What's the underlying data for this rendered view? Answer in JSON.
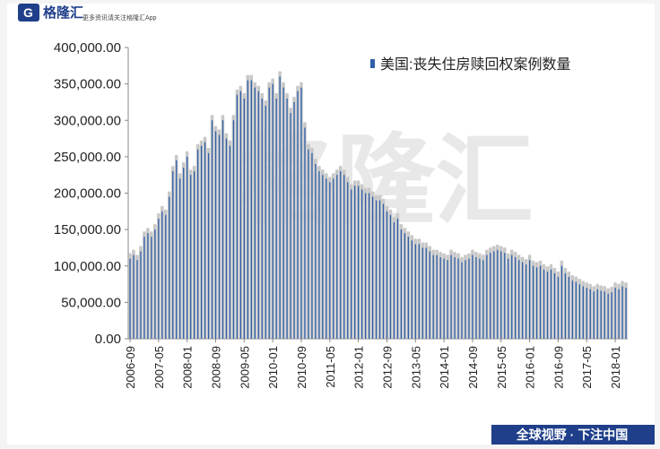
{
  "header": {
    "brand": "格隆汇",
    "slogan": "更多资讯请关注格隆汇App"
  },
  "footer": "全球视野 · 下注中国",
  "chart_data": {
    "type": "bar",
    "series": [
      {
        "name": "美国:丧失住房赎回权案例数量",
        "color": "#2e5fa8",
        "values": [
          110000,
          115000,
          108000,
          120000,
          140000,
          145000,
          140000,
          150000,
          165000,
          175000,
          170000,
          195000,
          230000,
          245000,
          220000,
          235000,
          250000,
          225000,
          230000,
          260000,
          265000,
          270000,
          255000,
          300000,
          285000,
          280000,
          300000,
          275000,
          265000,
          300000,
          335000,
          340000,
          330000,
          355000,
          355000,
          345000,
          340000,
          330000,
          320000,
          345000,
          350000,
          330000,
          360000,
          345000,
          330000,
          310000,
          325000,
          340000,
          345000,
          290000,
          260000,
          255000,
          240000,
          230000,
          225000,
          220000,
          215000,
          220000,
          225000,
          230000,
          225000,
          215000,
          205000,
          210000,
          210000,
          205000,
          200000,
          200000,
          195000,
          190000,
          190000,
          185000,
          175000,
          170000,
          160000,
          165000,
          150000,
          145000,
          140000,
          135000,
          130000,
          130000,
          125000,
          125000,
          120000,
          115000,
          115000,
          112000,
          110000,
          108000,
          115000,
          112000,
          110000,
          105000,
          108000,
          110000,
          115000,
          112000,
          110000,
          108000,
          115000,
          118000,
          120000,
          122000,
          120000,
          118000,
          110000,
          115000,
          112000,
          108000,
          105000,
          102000,
          108000,
          100000,
          98000,
          100000,
          95000,
          92000,
          95000,
          90000,
          85000,
          100000,
          90000,
          85000,
          80000,
          78000,
          75000,
          72000,
          70000,
          68000,
          65000,
          68000,
          66000,
          65000,
          62000,
          64000,
          70000,
          68000,
          72000,
          70000
        ]
      }
    ],
    "categories": [
      "2006-09",
      null,
      null,
      null,
      null,
      null,
      null,
      null,
      "2007-05",
      null,
      null,
      null,
      null,
      null,
      null,
      null,
      "2008-01",
      null,
      null,
      null,
      null,
      null,
      null,
      null,
      "2008-09",
      null,
      null,
      null,
      null,
      null,
      null,
      null,
      "2009-05",
      null,
      null,
      null,
      null,
      null,
      null,
      null,
      "2010-01",
      null,
      null,
      null,
      null,
      null,
      null,
      null,
      "2010-09",
      null,
      null,
      null,
      null,
      null,
      null,
      null,
      "2011-05",
      null,
      null,
      null,
      null,
      null,
      null,
      null,
      "2012-01",
      null,
      null,
      null,
      null,
      null,
      null,
      null,
      "2012-09",
      null,
      null,
      null,
      null,
      null,
      null,
      null,
      "2013-05",
      null,
      null,
      null,
      null,
      null,
      null,
      null,
      "2014-01",
      null,
      null,
      null,
      null,
      null,
      null,
      null,
      "2014-09",
      null,
      null,
      null,
      null,
      null,
      null,
      null,
      "2015-05",
      null,
      null,
      null,
      null,
      null,
      null,
      null,
      "2016-01",
      null,
      null,
      null,
      null,
      null,
      null,
      null,
      "2016-09",
      null,
      null,
      null,
      null,
      null,
      null,
      null,
      "2017-05",
      null,
      null,
      null,
      null,
      null,
      null,
      null,
      "2018-01",
      null,
      null,
      null
    ],
    "ylim": [
      0,
      400000
    ],
    "yticks": [
      {
        "value": 0,
        "label": "0.00"
      },
      {
        "value": 50000,
        "label": "50,000.00"
      },
      {
        "value": 100000,
        "label": "100,000.00"
      },
      {
        "value": 150000,
        "label": "150,000.00"
      },
      {
        "value": 200000,
        "label": "200,000.00"
      },
      {
        "value": 250000,
        "label": "250,000.00"
      },
      {
        "value": 300000,
        "label": "300,000.00"
      },
      {
        "value": 350000,
        "label": "350,000.00"
      },
      {
        "value": 400000,
        "label": "400,000.00"
      }
    ],
    "legend": "top-right"
  }
}
